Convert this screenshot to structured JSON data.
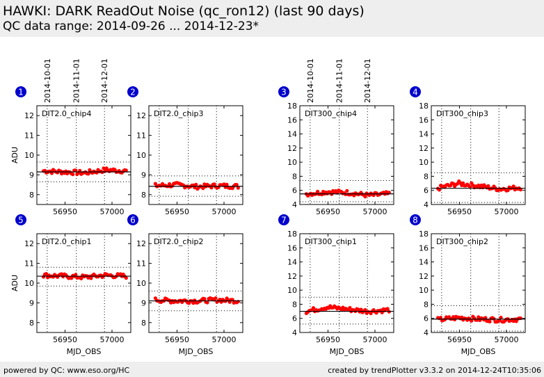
{
  "header": {
    "title": "HAWKI: DARK ReadOut Noise (qc_ron12) (last 90 days)",
    "subtitle": "QC data range: 2014-09-26 ... 2014-12-23*"
  },
  "footer": {
    "left": "powered by QC: www.eso.org/HC",
    "right": "created by trendPlotter v3.3.2 on 2014-12-24T10:35:06"
  },
  "date_markers": [
    {
      "label": "2014-10-01",
      "mjd": 56931
    },
    {
      "label": "2014-11-01",
      "mjd": 56962
    },
    {
      "label": "2014-12-01",
      "mjd": 56992
    }
  ],
  "colors": {
    "points": "#ff0000",
    "badge": "#0000cc",
    "header": "#eeeeee"
  },
  "chart_data": [
    {
      "type": "scatter",
      "panel": "1",
      "label": "DIT2.0_chip4",
      "xlabel": "",
      "ylabel": "ADU",
      "xlim": [
        56920,
        57020
      ],
      "xticks": [
        56950,
        57000
      ],
      "ylim": [
        7.5,
        12.5
      ],
      "yticks": [
        8,
        9,
        10,
        11,
        12
      ],
      "mean": 9.15,
      "limits": [
        9.65,
        8.65
      ],
      "y": [
        9.2,
        9.15,
        9.1,
        9.25,
        9.2
      ]
    },
    {
      "type": "scatter",
      "panel": "2",
      "label": "DIT2.0_chip3",
      "xlabel": "",
      "ylabel": "",
      "xlim": [
        56920,
        57020
      ],
      "xticks": [
        56950,
        57000
      ],
      "ylim": [
        7.5,
        12.5
      ],
      "yticks": [
        8,
        9,
        10,
        11,
        12
      ],
      "mean": 8.42,
      "limits": [
        8.95,
        7.92
      ],
      "y": [
        8.45,
        8.5,
        8.4,
        8.45,
        8.42
      ]
    },
    {
      "type": "scatter",
      "panel": "3",
      "label": "DIT300_chip4",
      "xlabel": "",
      "ylabel": "",
      "xlim": [
        56920,
        57020
      ],
      "xticks": [
        56950,
        57000
      ],
      "ylim": [
        4,
        18
      ],
      "yticks": [
        4,
        6,
        8,
        10,
        12,
        14,
        16,
        18
      ],
      "mean": 5.5,
      "limits": [
        7.4,
        4.4
      ],
      "y": [
        5.5,
        5.8,
        5.7,
        5.3,
        5.5
      ]
    },
    {
      "type": "scatter",
      "panel": "4",
      "label": "DIT300_chip3",
      "xlabel": "",
      "ylabel": "",
      "xlim": [
        56920,
        57020
      ],
      "xticks": [
        56950,
        57000
      ],
      "ylim": [
        4,
        18
      ],
      "yticks": [
        4,
        6,
        8,
        10,
        12,
        14,
        16,
        18
      ],
      "mean": 6.3,
      "limits": [
        8.5,
        4.3
      ],
      "y": [
        6.3,
        7.0,
        6.6,
        6.2,
        6.4
      ]
    },
    {
      "type": "scatter",
      "panel": "5",
      "label": "DIT2.0_chip1",
      "xlabel": "MJD_OBS",
      "ylabel": "ADU",
      "xlim": [
        56920,
        57020
      ],
      "xticks": [
        56950,
        57000
      ],
      "ylim": [
        7.5,
        12.5
      ],
      "yticks": [
        8,
        9,
        10,
        11,
        12
      ],
      "mean": 10.35,
      "limits": [
        10.8,
        9.85
      ],
      "y": [
        10.4,
        10.35,
        10.3,
        10.4,
        10.35
      ]
    },
    {
      "type": "scatter",
      "panel": "6",
      "label": "DIT2.0_chip2",
      "xlabel": "MJD_OBS",
      "ylabel": "",
      "xlim": [
        56920,
        57020
      ],
      "xticks": [
        56950,
        57000
      ],
      "ylim": [
        7.5,
        12.5
      ],
      "yticks": [
        8,
        9,
        10,
        11,
        12
      ],
      "mean": 9.1,
      "limits": [
        9.6,
        8.6
      ],
      "y": [
        9.15,
        9.1,
        9.1,
        9.15,
        9.1
      ]
    },
    {
      "type": "scatter",
      "panel": "7",
      "label": "DIT300_chip1",
      "xlabel": "MJD_OBS",
      "ylabel": "",
      "xlim": [
        56920,
        57020
      ],
      "xticks": [
        56950,
        57000
      ],
      "ylim": [
        4,
        18
      ],
      "yticks": [
        4,
        6,
        8,
        10,
        12,
        14,
        16,
        18
      ],
      "mean": 7.0,
      "limits": [
        9.0,
        5.2
      ],
      "y": [
        7.0,
        7.6,
        7.3,
        7.0,
        7.2
      ]
    },
    {
      "type": "scatter",
      "panel": "8",
      "label": "DIT300_chip2",
      "xlabel": "MJD_OBS",
      "ylabel": "",
      "xlim": [
        56920,
        57020
      ],
      "xticks": [
        56950,
        57000
      ],
      "ylim": [
        4,
        18
      ],
      "yticks": [
        4,
        6,
        8,
        10,
        12,
        14,
        16,
        18
      ],
      "mean": 5.9,
      "limits": [
        7.8,
        4.2
      ],
      "y": [
        5.8,
        6.1,
        5.9,
        5.8,
        5.9
      ]
    }
  ]
}
